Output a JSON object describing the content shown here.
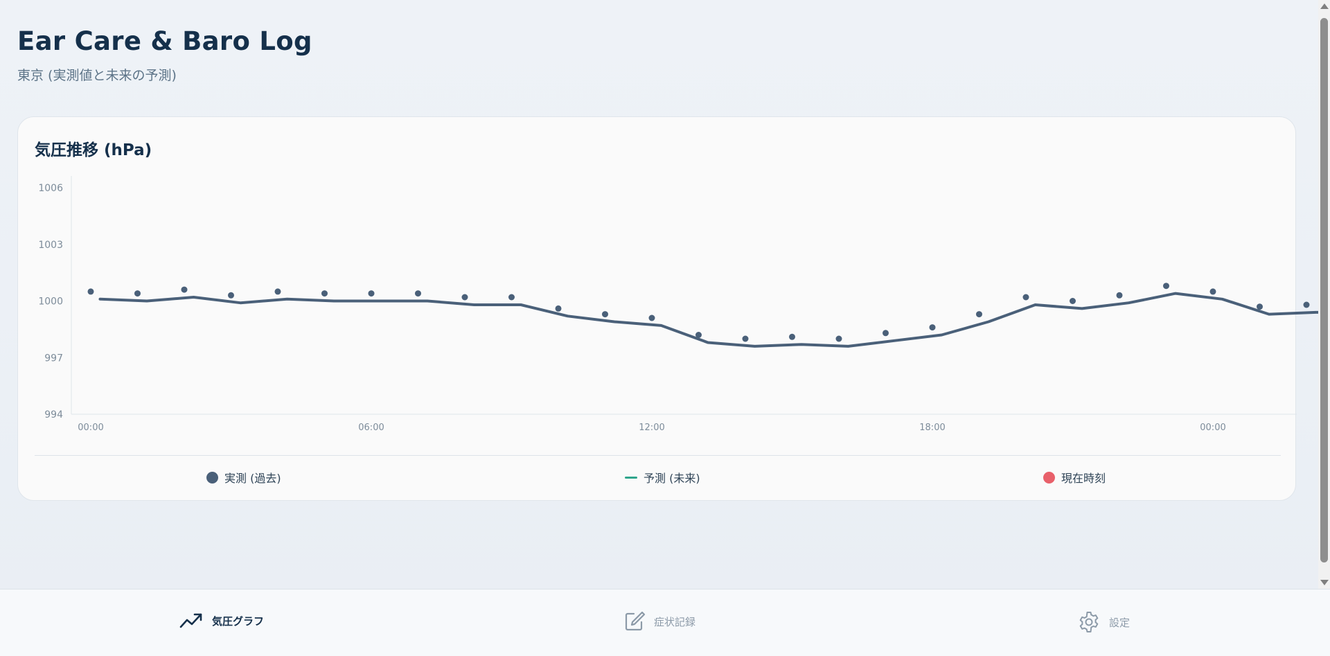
{
  "header": {
    "title": "Ear Care & Baro Log",
    "subtitle": "東京 (実測値と未来の予測)"
  },
  "chart_card": {
    "title": "気圧推移 (hPa)"
  },
  "colors": {
    "actual": "#4a6079",
    "forecast": "#2fa58c",
    "now": "#e8606a",
    "axis_text": "#7d8c9a",
    "nav_active": "#15304b",
    "nav_inactive": "#8c9aa8"
  },
  "chart_data": {
    "type": "line",
    "ylim": [
      994,
      1006
    ],
    "y_ticks": [
      "994",
      "997",
      "1000",
      "1003",
      "1006"
    ],
    "x_ticks": [
      "00:00",
      "06:00",
      "12:00",
      "18:00",
      "00:00"
    ],
    "x_tick_hours": [
      0,
      6,
      12,
      18,
      24
    ],
    "grid": false,
    "series": [
      {
        "name": "実測 (過去)",
        "kind": "points",
        "x_hours": [
          0,
          1,
          2,
          3,
          4,
          5,
          6,
          7,
          8,
          9,
          10,
          11,
          12,
          13,
          14,
          15,
          16,
          17,
          18,
          19,
          20,
          21,
          22,
          23,
          24,
          25,
          26
        ],
        "values": [
          1000.5,
          1000.4,
          1000.6,
          1000.3,
          1000.5,
          1000.4,
          1000.4,
          1000.4,
          1000.2,
          1000.2,
          999.6,
          999.3,
          999.1,
          998.2,
          998.0,
          998.1,
          998.0,
          998.3,
          998.6,
          999.3,
          1000.2,
          1000.0,
          1000.3,
          1000.8,
          1000.5,
          999.7,
          999.8
        ]
      },
      {
        "name": "予測 (未来)",
        "kind": "line",
        "x_hours": [
          0.2,
          1.2,
          2.2,
          3.2,
          4.2,
          5.2,
          6.2,
          7.2,
          8.2,
          9.2,
          10.2,
          11.2,
          12.2,
          13.2,
          14.2,
          15.2,
          16.2,
          17.2,
          18.2,
          19.2,
          20.2,
          21.2,
          22.2,
          23.2,
          24.2,
          25.2,
          26.2,
          26.55
        ],
        "values": [
          1000.1,
          1000.0,
          1000.2,
          999.9,
          1000.1,
          1000.0,
          1000.0,
          1000.0,
          999.8,
          999.8,
          999.2,
          998.9,
          998.7,
          997.8,
          997.6,
          997.7,
          997.6,
          997.9,
          998.2,
          998.9,
          999.8,
          999.6,
          999.9,
          1000.4,
          1000.1,
          999.3,
          999.4,
          999.4
        ]
      }
    ],
    "legend": [
      {
        "label": "実測 (過去)",
        "marker": "dot"
      },
      {
        "label": "予測 (未来)",
        "marker": "line"
      },
      {
        "label": "現在時刻",
        "marker": "dot"
      }
    ],
    "legend_position": "bottom"
  },
  "nav": {
    "items": [
      {
        "label": "気圧グラフ",
        "icon": "trending-up-icon",
        "active": true
      },
      {
        "label": "症状記録",
        "icon": "edit-note-icon",
        "active": false
      },
      {
        "label": "設定",
        "icon": "gear-icon",
        "active": false
      }
    ]
  }
}
